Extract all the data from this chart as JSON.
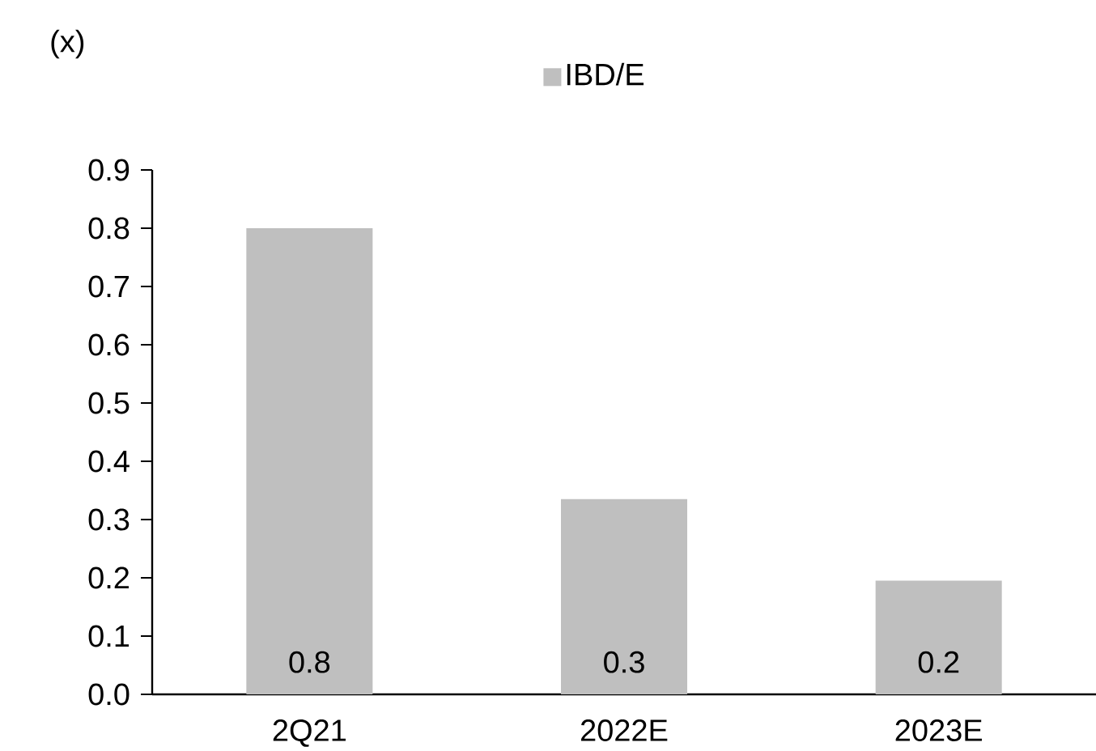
{
  "chart_data": {
    "type": "bar",
    "ylabel": "(x)",
    "categories": [
      "2Q21",
      "2022E",
      "2023E"
    ],
    "series": [
      {
        "name": "IBD/E",
        "color": "#bfbfbf",
        "values": [
          0.8,
          0.335,
          0.195
        ],
        "value_labels": [
          "0.8",
          "0.3",
          "0.2"
        ]
      }
    ],
    "ylim": [
      0,
      0.9
    ],
    "yticks": [
      {
        "value": 0,
        "label": "0.0"
      },
      {
        "value": 0.1,
        "label": "0.1"
      },
      {
        "value": 0.2,
        "label": "0.2"
      },
      {
        "value": 0.3,
        "label": "0.3"
      },
      {
        "value": 0.4,
        "label": "0.4"
      },
      {
        "value": 0.5,
        "label": "0.5"
      },
      {
        "value": 0.6,
        "label": "0.6"
      },
      {
        "value": 0.7,
        "label": "0.7"
      },
      {
        "value": 0.8,
        "label": "0.8"
      },
      {
        "value": 0.9,
        "label": "0.9"
      }
    ],
    "legend": "top",
    "grid": false
  }
}
